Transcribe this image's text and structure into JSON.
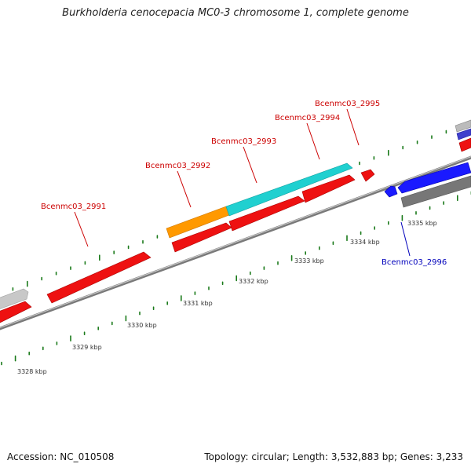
{
  "title": "Burkholderia cenocepacia MC0-3 chromosome 1, complete genome",
  "footer": {
    "accession": "Accession: NC_010508",
    "topology": "Topology: circular; Length: 3,532,883 bp; Genes: 3,233"
  },
  "colors": {
    "forward_gene": "#ff1a1a",
    "reverse_gene": "#1a1aff",
    "highlight_cyan": "#20d0d0",
    "highlight_orange": "#ff9900",
    "gray_gene": "#888888",
    "label_forward": "#cc0000",
    "label_reverse": "#0000bb",
    "tick": "#1a7a1a",
    "backbone": "#888888"
  },
  "gene_labels": [
    {
      "id": "Bcenmc03_2991",
      "text": "Bcenmc03_2991",
      "strand": "forward"
    },
    {
      "id": "Bcenmc03_2992",
      "text": "Bcenmc03_2992",
      "strand": "forward"
    },
    {
      "id": "Bcenmc03_2993",
      "text": "Bcenmc03_2993",
      "strand": "forward"
    },
    {
      "id": "Bcenmc03_2994",
      "text": "Bcenmc03_2994",
      "strand": "forward"
    },
    {
      "id": "Bcenmc03_2995",
      "text": "Bcenmc03_2995",
      "strand": "forward"
    },
    {
      "id": "Bcenmc03_2996",
      "text": "Bcenmc03_2996",
      "strand": "reverse"
    }
  ],
  "scale_labels": [
    "3328 kbp",
    "3329 kbp",
    "3330 kbp",
    "3331 kbp",
    "3332 kbp",
    "3333 kbp",
    "3334 kbp",
    "3335 kbp"
  ]
}
